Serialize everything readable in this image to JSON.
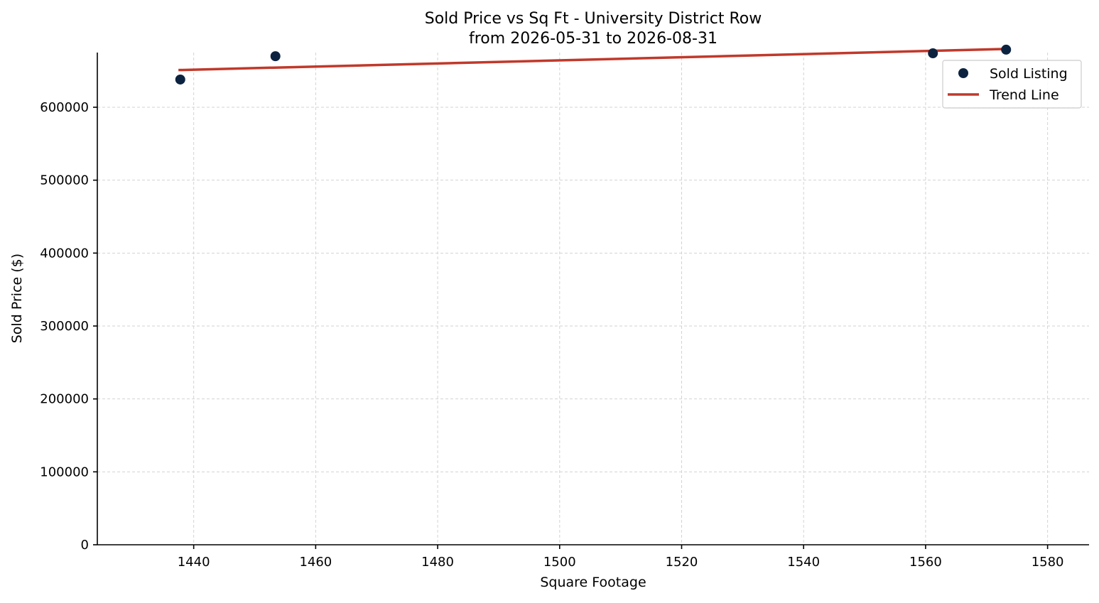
{
  "chart_data": {
    "type": "scatter",
    "title": "Sold Price vs Sq Ft - University District Row",
    "subtitle": "from 2026-05-31 to 2026-08-31",
    "xlabel": "Square Footage",
    "ylabel": "Sold Price ($)",
    "xlim": [
      1424.2,
      1586.8
    ],
    "ylim": [
      0,
      675000
    ],
    "x_ticks": [
      1440,
      1460,
      1480,
      1500,
      1520,
      1540,
      1560,
      1580
    ],
    "y_ticks": [
      0,
      100000,
      200000,
      300000,
      400000,
      500000,
      600000
    ],
    "grid": true,
    "legend_position": "top-right",
    "series": [
      {
        "name": "Sold Listing",
        "kind": "scatter",
        "color": "#0c2340",
        "points": [
          {
            "x": 1437.8,
            "y": 638000
          },
          {
            "x": 1453.4,
            "y": 670000
          },
          {
            "x": 1561.2,
            "y": 674000
          },
          {
            "x": 1573.2,
            "y": 679000
          }
        ]
      },
      {
        "name": "Trend Line",
        "kind": "line",
        "color": "#c0392b",
        "points": [
          {
            "x": 1437.5,
            "y": 651000
          },
          {
            "x": 1573.5,
            "y": 680000
          }
        ]
      }
    ]
  }
}
